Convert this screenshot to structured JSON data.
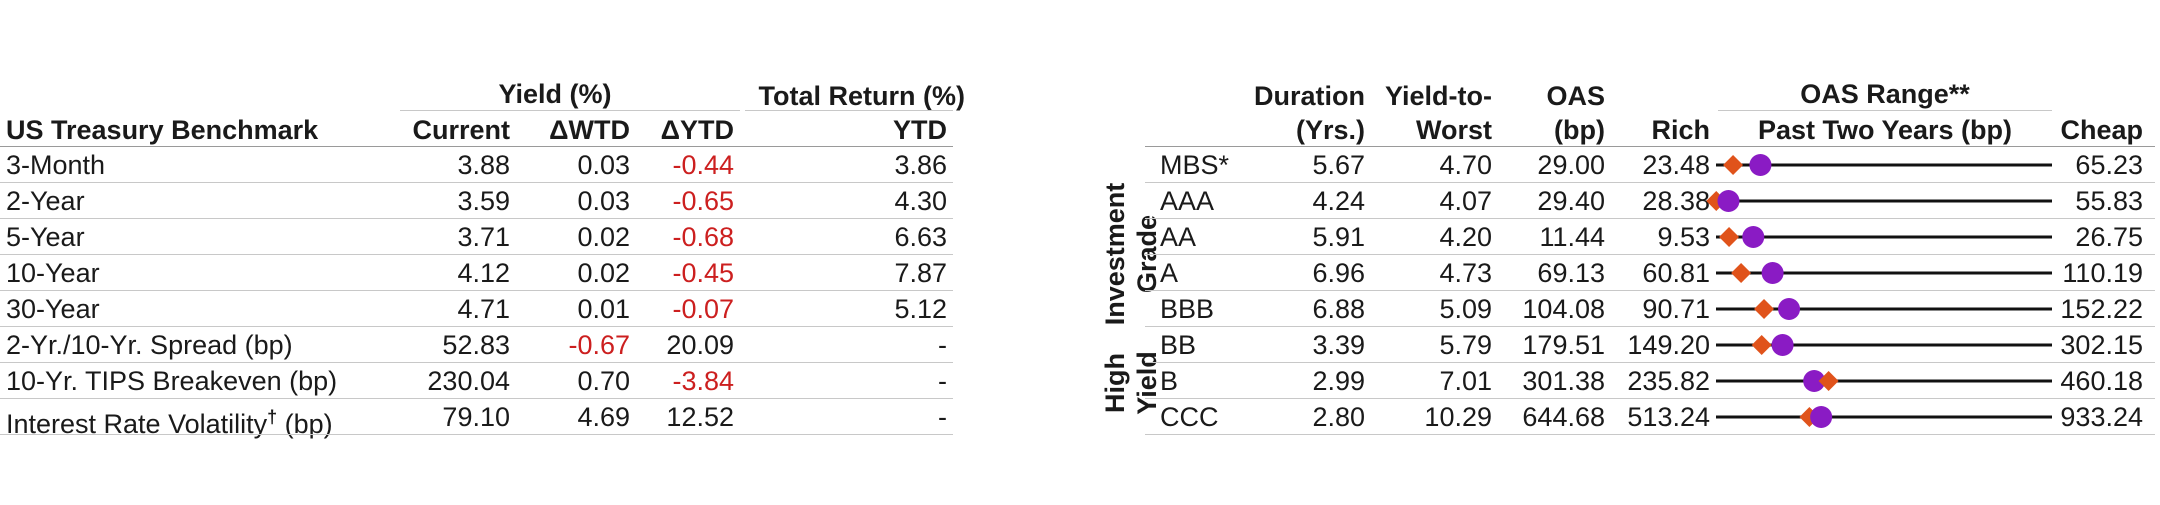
{
  "treasury": {
    "group_yield": "Yield (%)",
    "group_total_return": "Total Return (%)",
    "col_benchmark": "US Treasury Benchmark",
    "col_current": "Current",
    "col_wtd": "ΔWTD",
    "col_ytd": "ΔYTD",
    "col_tr_ytd": "YTD",
    "rows": [
      {
        "label": "3-Month",
        "current": "3.88",
        "wtd": "0.03",
        "ytd": "-0.44",
        "tr_ytd": "3.86"
      },
      {
        "label": "2-Year",
        "current": "3.59",
        "wtd": "0.03",
        "ytd": "-0.65",
        "tr_ytd": "4.30"
      },
      {
        "label": "5-Year",
        "current": "3.71",
        "wtd": "0.02",
        "ytd": "-0.68",
        "tr_ytd": "6.63"
      },
      {
        "label": "10-Year",
        "current": "4.12",
        "wtd": "0.02",
        "ytd": "-0.45",
        "tr_ytd": "7.87"
      },
      {
        "label": "30-Year",
        "current": "4.71",
        "wtd": "0.01",
        "ytd": "-0.07",
        "tr_ytd": "5.12"
      },
      {
        "label": "2-Yr./10-Yr. Spread (bp)",
        "current": "52.83",
        "wtd": "-0.67",
        "ytd": "20.09",
        "tr_ytd": "-"
      },
      {
        "label": "10-Yr. TIPS Breakeven (bp)",
        "current": "230.04",
        "wtd": "0.70",
        "ytd": "-3.84",
        "tr_ytd": "-"
      },
      {
        "label": "Interest Rate Volatility",
        "label_mark": "†",
        "label_suffix": " (bp)",
        "current": "79.10",
        "wtd": "4.69",
        "ytd": "12.52",
        "tr_ytd": "-"
      }
    ]
  },
  "credit": {
    "col_duration_1": "Duration",
    "col_duration_2": "(Yrs.)",
    "col_ytw_1": "Yield-to-",
    "col_ytw_2": "Worst",
    "col_oas_1": "OAS",
    "col_oas_2": "(bp)",
    "col_rich": "Rich",
    "col_range_1": "OAS Range**",
    "col_range_2": "Past Two Years (bp)",
    "col_cheap": "Cheap",
    "group_ig_1": "Investment",
    "group_ig_2": "Grade",
    "group_hy_1": "High",
    "group_hy_2": "Yield",
    "rows": [
      {
        "label": "MBS*",
        "duration": "5.67",
        "ytw": "4.70",
        "oas": "29.00",
        "rich": "23.48",
        "cheap": "65.23",
        "oas_value": 29.0,
        "marker_value": 25.6
      },
      {
        "label": "AAA",
        "duration": "4.24",
        "ytw": "4.07",
        "oas": "29.40",
        "rich": "28.38",
        "cheap": "55.83",
        "oas_value": 29.4,
        "marker_value": 28.4
      },
      {
        "label": "AA",
        "duration": "5.91",
        "ytw": "4.20",
        "oas": "11.44",
        "rich": "9.53",
        "cheap": "26.75",
        "oas_value": 11.44,
        "marker_value": 10.2
      },
      {
        "label": "A",
        "duration": "6.96",
        "ytw": "4.73",
        "oas": "69.13",
        "rich": "60.81",
        "cheap": "110.19",
        "oas_value": 69.13,
        "marker_value": 64.5
      },
      {
        "label": "BBB",
        "duration": "6.88",
        "ytw": "5.09",
        "oas": "104.08",
        "rich": "90.71",
        "cheap": "152.22",
        "oas_value": 104.08,
        "marker_value": 99.5
      },
      {
        "label": "BB",
        "duration": "3.39",
        "ytw": "5.79",
        "oas": "179.51",
        "rich": "149.20",
        "cheap": "302.15",
        "oas_value": 179.51,
        "marker_value": 170.0
      },
      {
        "label": "B",
        "duration": "2.99",
        "ytw": "7.01",
        "oas": "301.38",
        "rich": "235.82",
        "cheap": "460.18",
        "oas_value": 301.38,
        "marker_value": 311.0
      },
      {
        "label": "CCC",
        "duration": "2.80",
        "ytw": "10.29",
        "oas": "644.68",
        "rich": "513.24",
        "cheap": "933.24",
        "oas_value": 644.68,
        "marker_value": 630.0
      }
    ],
    "colors": {
      "oas_marker": "#8a1bc4",
      "diamond_marker": "#e0531b",
      "range_line": "#111111"
    }
  }
}
